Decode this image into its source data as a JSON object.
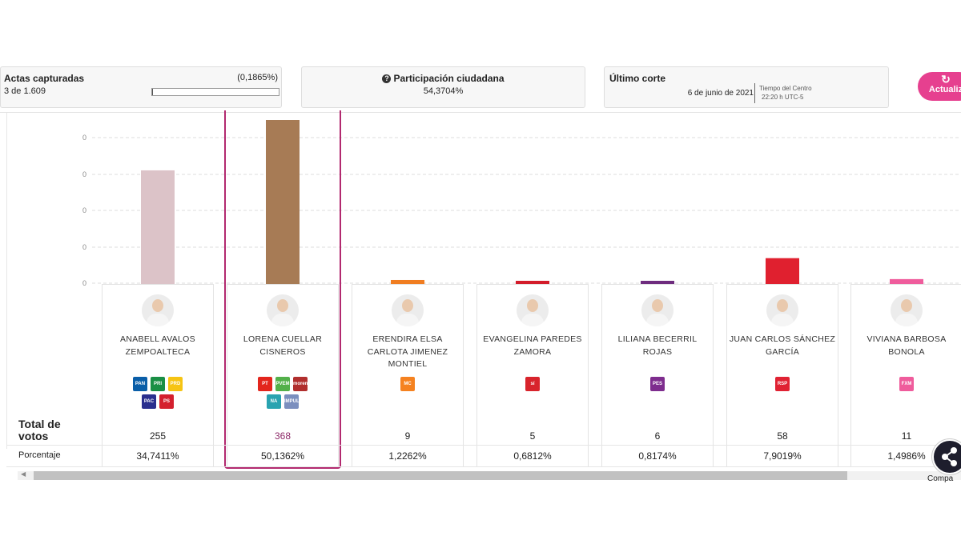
{
  "actas": {
    "title": "Actas capturadas",
    "count": "3 de 1.609",
    "percent": "(0,1865%)",
    "progress": 0.001865
  },
  "participacion": {
    "title": "Participación ciudadana",
    "value": "54,3704%"
  },
  "corte": {
    "title": "Último corte",
    "date": "6 de junio de 2021",
    "tz_label": "Tiempo del Centro",
    "time": "22:20 h UTC-5"
  },
  "refresh": {
    "label": "Actualiz",
    "icon": "refresh-icon"
  },
  "rows": {
    "total_label": "Total de votos",
    "percent_label": "Porcentaje"
  },
  "share": {
    "label": "Compa",
    "icon": "share-icon"
  },
  "highlight_color": "#b2296f",
  "chart_data": {
    "type": "bar",
    "ytick_labels": [
      "0",
      "0",
      "0",
      "0",
      "0"
    ],
    "grid": true,
    "categories": [
      "ANABELL AVALOS ZEMPOALTECA",
      "LORENA CUELLAR CISNEROS",
      "ERENDIRA ELSA CARLOTA JIMENEZ MONTIEL",
      "EVANGELINA PAREDES ZAMORA",
      "LILIANA BECERRIL ROJAS",
      "JUAN CARLOS SÁNCHEZ GARCÍA",
      "VIVIANA BARBOSA BONOLA"
    ],
    "values": [
      255,
      368,
      9,
      5,
      6,
      58,
      11
    ],
    "colors": [
      "#dcc3c8",
      "#a77b55",
      "#f07d21",
      "#d31c2a",
      "#6e2c7e",
      "#e0202f",
      "#ef5c9c"
    ]
  },
  "candidates": [
    {
      "name": "ANABELL AVALOS ZEMPOALTECA",
      "votes": "255",
      "percent": "34,7411%",
      "parties": [
        {
          "code": "PAN",
          "color": "#0a5ea8"
        },
        {
          "code": "PRI",
          "color": "#1a8f45"
        },
        {
          "code": "PRD",
          "color": "#f6c413"
        },
        {
          "code": "PAC",
          "color": "#2a2f8e"
        },
        {
          "code": "PS",
          "color": "#d4202e"
        }
      ]
    },
    {
      "name": "LORENA CUELLAR CISNEROS",
      "votes": "368",
      "percent": "50,1362%",
      "parties": [
        {
          "code": "PT",
          "color": "#e3261d"
        },
        {
          "code": "PVEM",
          "color": "#53b04a"
        },
        {
          "code": "morena",
          "color": "#b12f2e"
        },
        {
          "code": "NA",
          "color": "#29a3b0"
        },
        {
          "code": "IMPULSO",
          "color": "#7b8fbe"
        }
      ]
    },
    {
      "name": "ERENDIRA ELSA CARLOTA JIMENEZ MONTIEL",
      "votes": "9",
      "percent": "1,2262%",
      "parties": [
        {
          "code": "MC",
          "color": "#f58220"
        }
      ]
    },
    {
      "name": "EVANGELINA PAREDES ZAMORA",
      "votes": "5",
      "percent": "0,6812%",
      "parties": [
        {
          "code": "sí",
          "color": "#d8242c"
        }
      ]
    },
    {
      "name": "LILIANA BECERRIL ROJAS",
      "votes": "6",
      "percent": "0,8174%",
      "parties": [
        {
          "code": "PES",
          "color": "#7e2d8e"
        }
      ]
    },
    {
      "name": "JUAN CARLOS SÁNCHEZ GARCÍA",
      "votes": "58",
      "percent": "7,9019%",
      "parties": [
        {
          "code": "RSP",
          "color": "#e02233"
        }
      ]
    },
    {
      "name": "VIVIANA BARBOSA BONOLA",
      "votes": "11",
      "percent": "1,4986%",
      "parties": [
        {
          "code": "FXM",
          "color": "#ef5c9c"
        }
      ]
    }
  ]
}
